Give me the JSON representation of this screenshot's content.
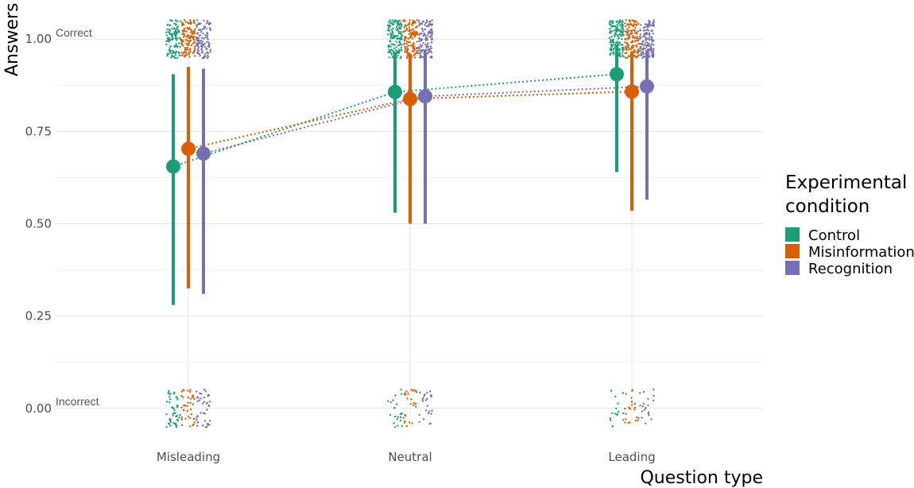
{
  "chart_data": {
    "type": "scatter",
    "xlabel": "Question type",
    "ylabel": "Answers",
    "ylim": [
      -0.05,
      1.05
    ],
    "categories": [
      "Misleading",
      "Neutral",
      "Leading"
    ],
    "y_ticks": [
      0.0,
      0.25,
      0.5,
      0.75,
      1.0
    ],
    "y_tick_labels": [
      "0.00",
      "0.25",
      "0.50",
      "0.75",
      "1.00"
    ],
    "grid": true,
    "annotations": [
      {
        "text": "Correct",
        "y": 1.0
      },
      {
        "text": "Incorrect",
        "y": 0.0
      }
    ],
    "legend": {
      "title_line1": "Experimental",
      "title_line2": "condition",
      "placement": "right"
    },
    "series": [
      {
        "name": "Control",
        "color": "#1b9e77",
        "mean": [
          0.655,
          0.857,
          0.905
        ],
        "lower": [
          0.28,
          0.53,
          0.64
        ],
        "upper": [
          0.905,
          0.965,
          0.985
        ],
        "jitter_correct_counts": [
          110,
          135,
          150
        ],
        "jitter_incorrect_counts": [
          45,
          22,
          16
        ]
      },
      {
        "name": "Misinformation",
        "color": "#d95f02",
        "mean": [
          0.703,
          0.838,
          0.858
        ],
        "lower": [
          0.325,
          0.5,
          0.535
        ],
        "upper": [
          0.925,
          0.96,
          0.965
        ],
        "jitter_correct_counts": [
          120,
          130,
          135
        ],
        "jitter_incorrect_counts": [
          40,
          25,
          22
        ]
      },
      {
        "name": "Recognition",
        "color": "#7570b3",
        "mean": [
          0.69,
          0.845,
          0.872
        ],
        "lower": [
          0.31,
          0.5,
          0.565
        ],
        "upper": [
          0.92,
          0.96,
          0.97
        ],
        "jitter_correct_counts": [
          115,
          130,
          140
        ],
        "jitter_incorrect_counts": [
          42,
          24,
          20
        ]
      }
    ]
  }
}
